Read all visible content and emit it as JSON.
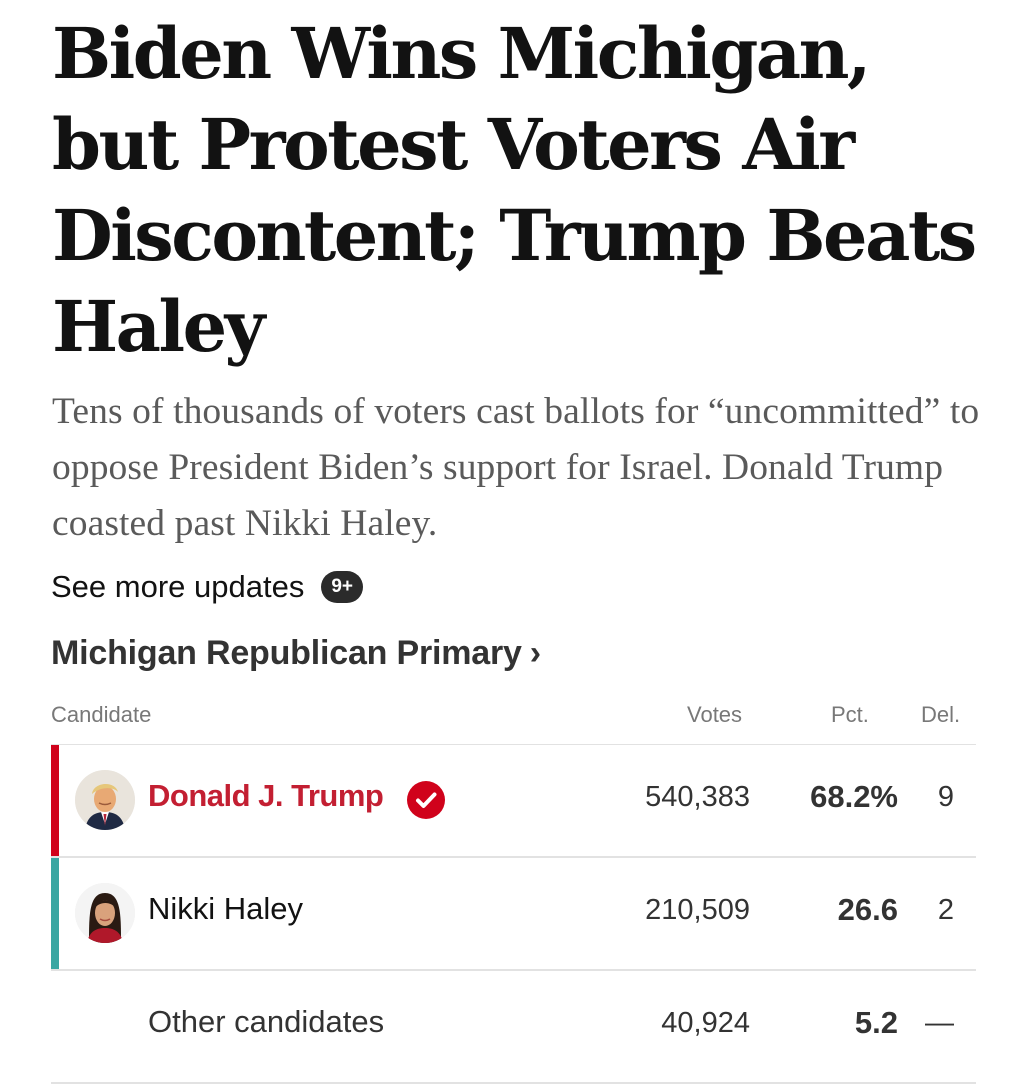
{
  "article": {
    "headline": "Biden Wins Michigan, but Protest Voters Air Discontent; Trump Beats Haley",
    "summary": "Tens of thousands of voters cast ballots for “uncommitted” to oppose President Biden’s support for Israel. Donald Trump coasted past Nikki Haley.",
    "updates_link": "See more updates",
    "updates_badge": "9+"
  },
  "race": {
    "title": "Michigan Republican Primary",
    "chevron": "›",
    "columns": {
      "candidate": "Candidate",
      "votes": "Votes",
      "pct": "Pct.",
      "del": "Del."
    },
    "rows": [
      {
        "name": "Donald J. Trump",
        "votes": "540,383",
        "pct": "68.2%",
        "del": "9",
        "winner": true,
        "bar_color": "#d0021b",
        "icon": "winner-check-icon"
      },
      {
        "name": "Nikki Haley",
        "votes": "210,509",
        "pct": "26.6",
        "del": "2",
        "winner": false,
        "bar_color": "#3aa6a2"
      },
      {
        "name": "Other candidates",
        "votes": "40,924",
        "pct": "5.2",
        "del": "—"
      }
    ]
  },
  "colors": {
    "winner_text": "#c31f32",
    "winner_check": "#d0021b",
    "republican_bar": "#d0021b",
    "second_bar": "#3aa6a2"
  }
}
